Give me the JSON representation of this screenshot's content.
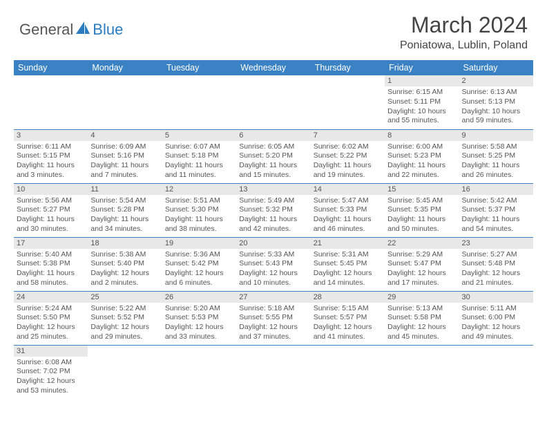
{
  "logo": {
    "general": "General",
    "blue": "Blue"
  },
  "title": "March 2024",
  "location": "Poniatowa, Lublin, Poland",
  "colors": {
    "header_bg": "#3b82c4",
    "header_text": "#ffffff",
    "daynum_bg": "#e8e8e8",
    "row_divider": "#3b82c4",
    "logo_blue": "#2b7bbf",
    "text": "#555555"
  },
  "weekdays": [
    "Sunday",
    "Monday",
    "Tuesday",
    "Wednesday",
    "Thursday",
    "Friday",
    "Saturday"
  ],
  "weeks": [
    [
      null,
      null,
      null,
      null,
      null,
      {
        "n": "1",
        "sr": "Sunrise: 6:15 AM",
        "ss": "Sunset: 5:11 PM",
        "dl": "Daylight: 10 hours and 55 minutes."
      },
      {
        "n": "2",
        "sr": "Sunrise: 6:13 AM",
        "ss": "Sunset: 5:13 PM",
        "dl": "Daylight: 10 hours and 59 minutes."
      }
    ],
    [
      {
        "n": "3",
        "sr": "Sunrise: 6:11 AM",
        "ss": "Sunset: 5:15 PM",
        "dl": "Daylight: 11 hours and 3 minutes."
      },
      {
        "n": "4",
        "sr": "Sunrise: 6:09 AM",
        "ss": "Sunset: 5:16 PM",
        "dl": "Daylight: 11 hours and 7 minutes."
      },
      {
        "n": "5",
        "sr": "Sunrise: 6:07 AM",
        "ss": "Sunset: 5:18 PM",
        "dl": "Daylight: 11 hours and 11 minutes."
      },
      {
        "n": "6",
        "sr": "Sunrise: 6:05 AM",
        "ss": "Sunset: 5:20 PM",
        "dl": "Daylight: 11 hours and 15 minutes."
      },
      {
        "n": "7",
        "sr": "Sunrise: 6:02 AM",
        "ss": "Sunset: 5:22 PM",
        "dl": "Daylight: 11 hours and 19 minutes."
      },
      {
        "n": "8",
        "sr": "Sunrise: 6:00 AM",
        "ss": "Sunset: 5:23 PM",
        "dl": "Daylight: 11 hours and 22 minutes."
      },
      {
        "n": "9",
        "sr": "Sunrise: 5:58 AM",
        "ss": "Sunset: 5:25 PM",
        "dl": "Daylight: 11 hours and 26 minutes."
      }
    ],
    [
      {
        "n": "10",
        "sr": "Sunrise: 5:56 AM",
        "ss": "Sunset: 5:27 PM",
        "dl": "Daylight: 11 hours and 30 minutes."
      },
      {
        "n": "11",
        "sr": "Sunrise: 5:54 AM",
        "ss": "Sunset: 5:28 PM",
        "dl": "Daylight: 11 hours and 34 minutes."
      },
      {
        "n": "12",
        "sr": "Sunrise: 5:51 AM",
        "ss": "Sunset: 5:30 PM",
        "dl": "Daylight: 11 hours and 38 minutes."
      },
      {
        "n": "13",
        "sr": "Sunrise: 5:49 AM",
        "ss": "Sunset: 5:32 PM",
        "dl": "Daylight: 11 hours and 42 minutes."
      },
      {
        "n": "14",
        "sr": "Sunrise: 5:47 AM",
        "ss": "Sunset: 5:33 PM",
        "dl": "Daylight: 11 hours and 46 minutes."
      },
      {
        "n": "15",
        "sr": "Sunrise: 5:45 AM",
        "ss": "Sunset: 5:35 PM",
        "dl": "Daylight: 11 hours and 50 minutes."
      },
      {
        "n": "16",
        "sr": "Sunrise: 5:42 AM",
        "ss": "Sunset: 5:37 PM",
        "dl": "Daylight: 11 hours and 54 minutes."
      }
    ],
    [
      {
        "n": "17",
        "sr": "Sunrise: 5:40 AM",
        "ss": "Sunset: 5:38 PM",
        "dl": "Daylight: 11 hours and 58 minutes."
      },
      {
        "n": "18",
        "sr": "Sunrise: 5:38 AM",
        "ss": "Sunset: 5:40 PM",
        "dl": "Daylight: 12 hours and 2 minutes."
      },
      {
        "n": "19",
        "sr": "Sunrise: 5:36 AM",
        "ss": "Sunset: 5:42 PM",
        "dl": "Daylight: 12 hours and 6 minutes."
      },
      {
        "n": "20",
        "sr": "Sunrise: 5:33 AM",
        "ss": "Sunset: 5:43 PM",
        "dl": "Daylight: 12 hours and 10 minutes."
      },
      {
        "n": "21",
        "sr": "Sunrise: 5:31 AM",
        "ss": "Sunset: 5:45 PM",
        "dl": "Daylight: 12 hours and 14 minutes."
      },
      {
        "n": "22",
        "sr": "Sunrise: 5:29 AM",
        "ss": "Sunset: 5:47 PM",
        "dl": "Daylight: 12 hours and 17 minutes."
      },
      {
        "n": "23",
        "sr": "Sunrise: 5:27 AM",
        "ss": "Sunset: 5:48 PM",
        "dl": "Daylight: 12 hours and 21 minutes."
      }
    ],
    [
      {
        "n": "24",
        "sr": "Sunrise: 5:24 AM",
        "ss": "Sunset: 5:50 PM",
        "dl": "Daylight: 12 hours and 25 minutes."
      },
      {
        "n": "25",
        "sr": "Sunrise: 5:22 AM",
        "ss": "Sunset: 5:52 PM",
        "dl": "Daylight: 12 hours and 29 minutes."
      },
      {
        "n": "26",
        "sr": "Sunrise: 5:20 AM",
        "ss": "Sunset: 5:53 PM",
        "dl": "Daylight: 12 hours and 33 minutes."
      },
      {
        "n": "27",
        "sr": "Sunrise: 5:18 AM",
        "ss": "Sunset: 5:55 PM",
        "dl": "Daylight: 12 hours and 37 minutes."
      },
      {
        "n": "28",
        "sr": "Sunrise: 5:15 AM",
        "ss": "Sunset: 5:57 PM",
        "dl": "Daylight: 12 hours and 41 minutes."
      },
      {
        "n": "29",
        "sr": "Sunrise: 5:13 AM",
        "ss": "Sunset: 5:58 PM",
        "dl": "Daylight: 12 hours and 45 minutes."
      },
      {
        "n": "30",
        "sr": "Sunrise: 5:11 AM",
        "ss": "Sunset: 6:00 PM",
        "dl": "Daylight: 12 hours and 49 minutes."
      }
    ],
    [
      {
        "n": "31",
        "sr": "Sunrise: 6:08 AM",
        "ss": "Sunset: 7:02 PM",
        "dl": "Daylight: 12 hours and 53 minutes."
      },
      null,
      null,
      null,
      null,
      null,
      null
    ]
  ]
}
